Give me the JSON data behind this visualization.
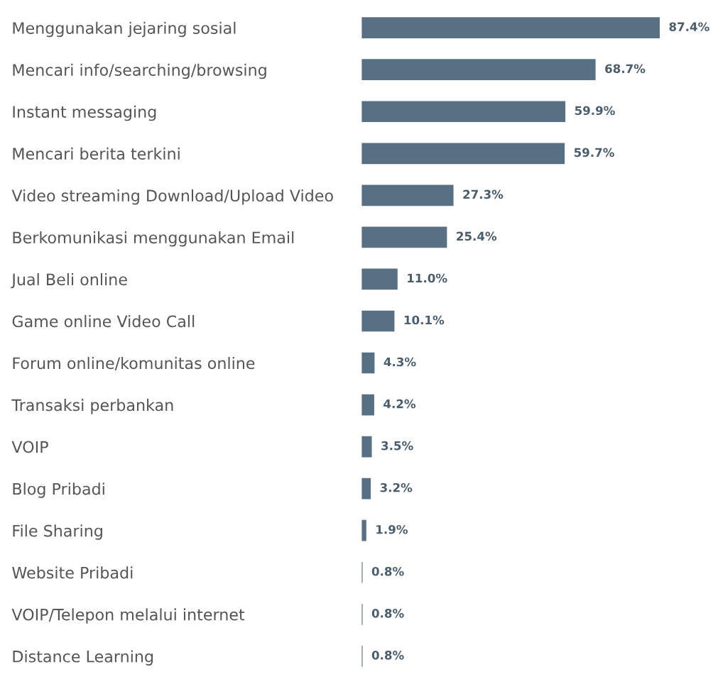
{
  "chart_data": {
    "type": "bar",
    "orientation": "horizontal",
    "categories": [
      "Menggunakan jejaring sosial",
      "Mencari info/searching/browsing",
      "Instant messaging",
      "Mencari berita terkini",
      "Video streaming Download/Upload Video",
      "Berkomunikasi menggunakan Email",
      "Jual Beli online",
      "Game online Video Call",
      "Forum online/komunitas online",
      "Transaksi perbankan",
      "VOIP",
      "Blog Pribadi",
      "File Sharing",
      "Website Pribadi",
      "VOIP/Telepon melalui internet",
      "Distance Learning"
    ],
    "values": [
      87.4,
      68.7,
      59.9,
      59.7,
      27.3,
      25.4,
      11.0,
      10.1,
      4.3,
      4.2,
      3.5,
      3.2,
      1.9,
      0.8,
      0.8,
      0.8
    ],
    "value_labels": [
      "87.4%",
      "68.7%",
      "59.9%",
      "59.7%",
      "27.3%",
      "25.4%",
      "11.0%",
      "10.1%",
      "4.3%",
      "4.2%",
      "3.5%",
      "3.2%",
      "1.9%",
      "0.8%",
      "0.8%",
      "0.8%"
    ],
    "color": "#587083",
    "tick_labels": "y",
    "grid": false,
    "legend": false
  }
}
